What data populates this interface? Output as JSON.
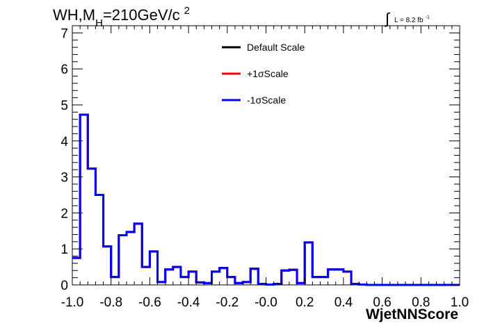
{
  "header": {
    "title_main": "WH,M",
    "title_sub": "H",
    "title_rest": "=210GeV/c",
    "title_sup": "2",
    "lumi_integral": "∫",
    "lumi_label": "L = 8.2 fb",
    "lumi_sup": "-1"
  },
  "chart_data": {
    "type": "line",
    "xlabel": "WjetNNScore",
    "ylabel": "",
    "xlim": [
      -1.0,
      1.0
    ],
    "ylim": [
      0,
      7.2
    ],
    "grid": false,
    "legend_position": "top-center",
    "x_ticks": [
      {
        "value": -1.0,
        "label": "-1.0"
      },
      {
        "value": -0.8,
        "label": "-0.8"
      },
      {
        "value": -0.6,
        "label": "-0.6"
      },
      {
        "value": -0.4,
        "label": "-0.4"
      },
      {
        "value": -0.2,
        "label": "-0.2"
      },
      {
        "value": 0.0,
        "label": "-0.0"
      },
      {
        "value": 0.2,
        "label": "0.2"
      },
      {
        "value": 0.4,
        "label": "0.4"
      },
      {
        "value": 0.6,
        "label": "0.6"
      },
      {
        "value": 0.8,
        "label": "0.8"
      },
      {
        "value": 1.0,
        "label": "1.0"
      }
    ],
    "y_ticks": [
      {
        "value": 0,
        "label": "0"
      },
      {
        "value": 1,
        "label": "1"
      },
      {
        "value": 2,
        "label": "2"
      },
      {
        "value": 3,
        "label": "3"
      },
      {
        "value": 4,
        "label": "4"
      },
      {
        "value": 5,
        "label": "5"
      },
      {
        "value": 6,
        "label": "6"
      },
      {
        "value": 7,
        "label": "7"
      }
    ],
    "bin_edges": [
      -1.0,
      -0.96,
      -0.92,
      -0.88,
      -0.84,
      -0.8,
      -0.76,
      -0.72,
      -0.68,
      -0.64,
      -0.6,
      -0.56,
      -0.52,
      -0.48,
      -0.44,
      -0.4,
      -0.36,
      -0.32,
      -0.28,
      -0.24,
      -0.2,
      -0.16,
      -0.12,
      -0.08,
      -0.04,
      0.0,
      0.04,
      0.08,
      0.12,
      0.16,
      0.2,
      0.24,
      0.28,
      0.32,
      0.36,
      0.4,
      0.44,
      0.48,
      0.52,
      0.56,
      0.6,
      0.64,
      0.68,
      0.72,
      0.76,
      0.8,
      0.84,
      0.88,
      0.92,
      0.96,
      1.0
    ],
    "series": [
      {
        "name": "Default Scale",
        "color": "#000000",
        "values": [
          0.75,
          4.73,
          3.23,
          2.5,
          1.07,
          0.22,
          1.38,
          1.47,
          1.7,
          0.5,
          0.93,
          0.08,
          0.43,
          0.5,
          0.22,
          0.37,
          0.07,
          0.05,
          0.37,
          0.47,
          0.22,
          0.05,
          0.08,
          0.45,
          0.03,
          0.01,
          0.03,
          0.4,
          0.42,
          0.05,
          1.18,
          0.22,
          0.22,
          0.43,
          0.43,
          0.37,
          0.03,
          0.01,
          0.0,
          0.0,
          0.0,
          0.0,
          0.0,
          0.0,
          0.0,
          0.0,
          0.0,
          0.0,
          0.0,
          0.0
        ]
      },
      {
        "name": "+1σScale",
        "color": "#ff0000",
        "values": [
          0.75,
          4.73,
          3.23,
          2.5,
          1.07,
          0.22,
          1.38,
          1.47,
          1.7,
          0.5,
          0.93,
          0.08,
          0.43,
          0.5,
          0.22,
          0.37,
          0.07,
          0.05,
          0.37,
          0.47,
          0.22,
          0.05,
          0.08,
          0.45,
          0.03,
          0.01,
          0.03,
          0.4,
          0.42,
          0.05,
          1.18,
          0.22,
          0.22,
          0.43,
          0.43,
          0.37,
          0.03,
          0.01,
          0.0,
          0.0,
          0.0,
          0.0,
          0.0,
          0.0,
          0.0,
          0.0,
          0.0,
          0.0,
          0.0,
          0.0
        ]
      },
      {
        "name": "-1σScale",
        "color": "#0000ff",
        "values": [
          0.75,
          4.73,
          3.23,
          2.5,
          1.07,
          0.22,
          1.38,
          1.47,
          1.7,
          0.5,
          0.93,
          0.08,
          0.43,
          0.5,
          0.22,
          0.37,
          0.07,
          0.05,
          0.37,
          0.47,
          0.22,
          0.05,
          0.08,
          0.45,
          0.03,
          0.01,
          0.03,
          0.4,
          0.42,
          0.05,
          1.18,
          0.22,
          0.22,
          0.43,
          0.43,
          0.37,
          0.03,
          0.01,
          0.0,
          0.0,
          0.0,
          0.0,
          0.0,
          0.0,
          0.0,
          0.0,
          0.0,
          0.0,
          0.0,
          0.0
        ]
      }
    ]
  }
}
